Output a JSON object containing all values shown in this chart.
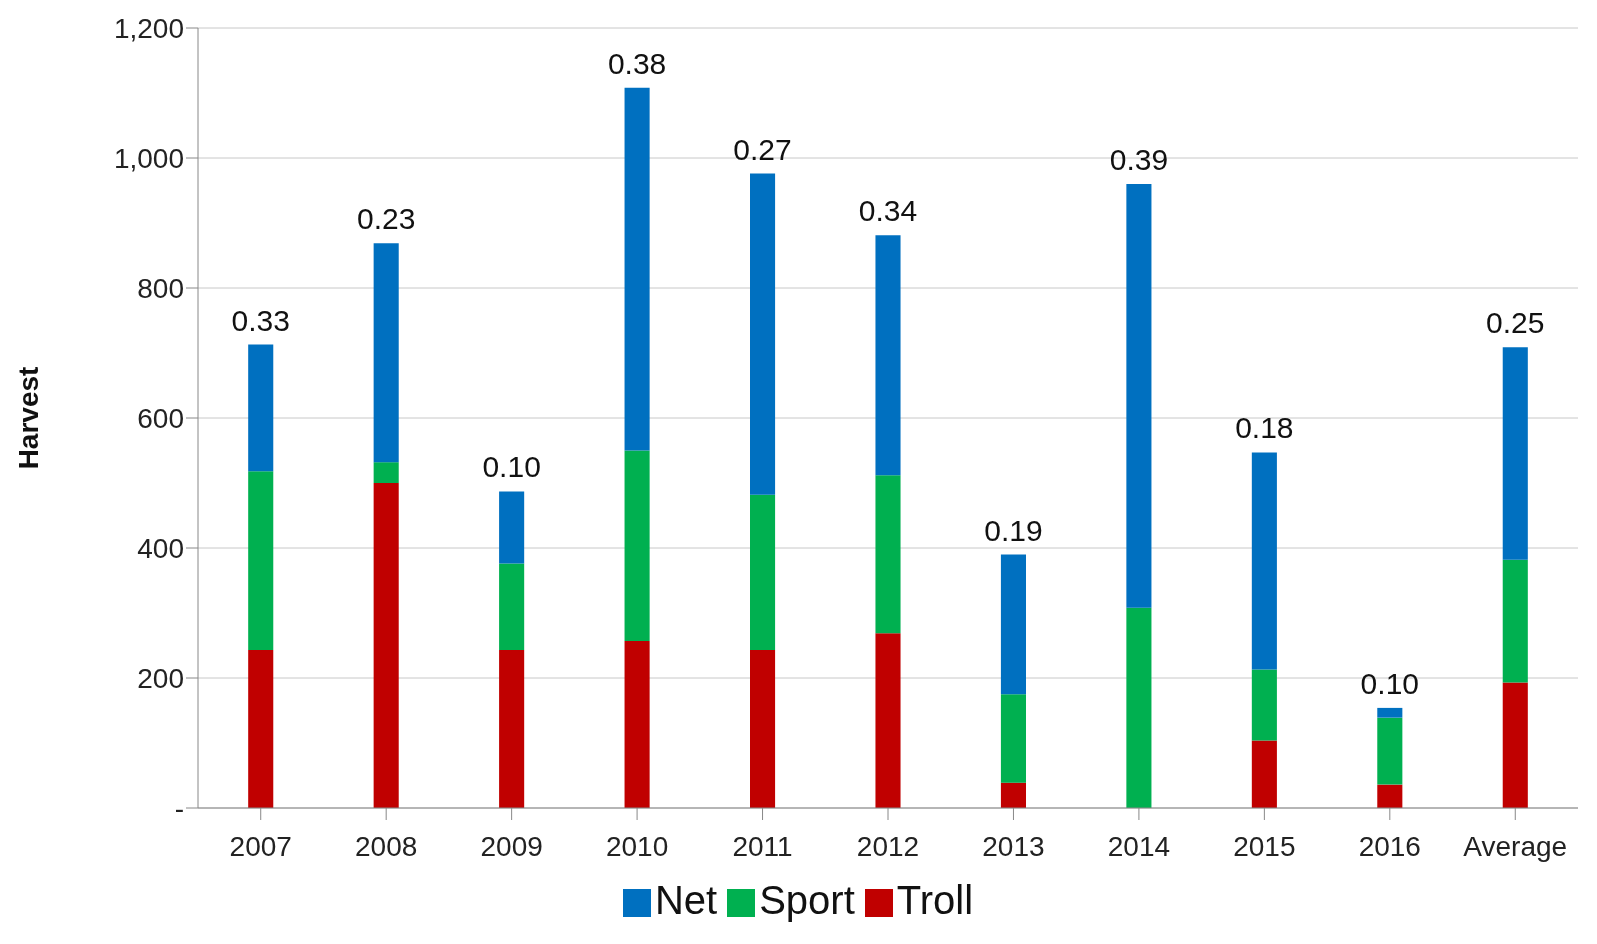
{
  "chart_data": {
    "type": "bar",
    "stacked": true,
    "ylabel": "Harvest",
    "categories": [
      "2007",
      "2008",
      "2009",
      "2010",
      "2011",
      "2012",
      "2013",
      "2014",
      "2015",
      "2016",
      "Average"
    ],
    "series": [
      {
        "name": "Troll",
        "color": "#c00000",
        "values": [
          243,
          500,
          243,
          257,
          243,
          269,
          39,
          0,
          104,
          36,
          193
        ]
      },
      {
        "name": "Sport",
        "color": "#00b050",
        "values": [
          275,
          32,
          133,
          293,
          239,
          243,
          136,
          308,
          109,
          103,
          189
        ]
      },
      {
        "name": "Net",
        "color": "#0070c0",
        "values": [
          195,
          337,
          111,
          558,
          494,
          369,
          215,
          652,
          334,
          15,
          327
        ]
      }
    ],
    "ylim": [
      0,
      1200
    ],
    "yticks": [
      {
        "value": 0,
        "label": "-"
      },
      200,
      400,
      600,
      800,
      {
        "value": 1000,
        "label": "1,000"
      },
      {
        "value": 1200,
        "label": "1,200"
      }
    ],
    "grid": "y",
    "legend": "bottom",
    "annotations": [
      {
        "text": "0.33",
        "x": "2007",
        "y": 713
      },
      {
        "text": "0.23",
        "x": "2008",
        "y": 869
      },
      {
        "text": "0.10",
        "x": "2009",
        "y": 487
      },
      {
        "text": "0.38",
        "x": "2010",
        "y": 1108
      },
      {
        "text": "0.27",
        "x": "2011",
        "y": 976
      },
      {
        "text": "0.34",
        "x": "2012",
        "y": 881
      },
      {
        "text": "0.19",
        "x": "2013",
        "y": 390
      },
      {
        "text": "0.39",
        "x": "2014",
        "y": 960
      },
      {
        "text": "0.18",
        "x": "2015",
        "y": 547
      },
      {
        "text": "0.10",
        "x": "2016",
        "y": 154
      },
      {
        "text": "0.25",
        "x": "Average",
        "y": 709
      }
    ]
  }
}
